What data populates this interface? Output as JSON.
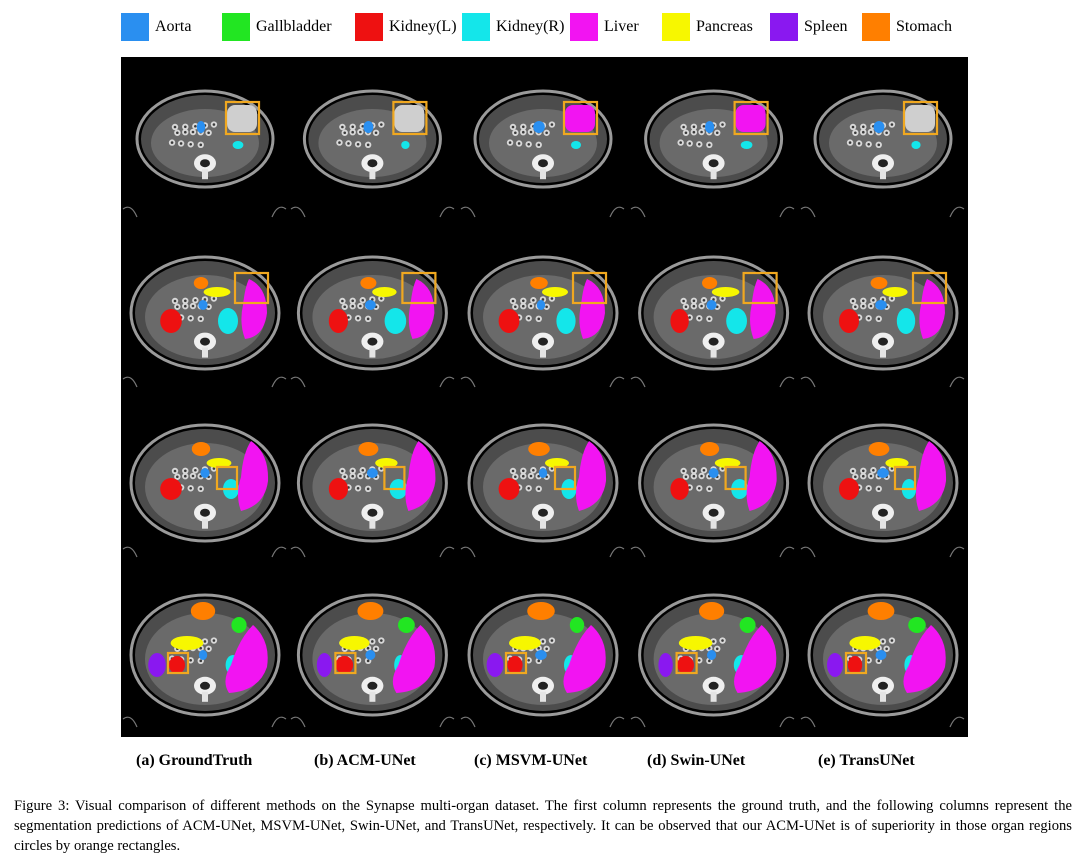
{
  "legend": [
    {
      "label": "Aorta",
      "color": "#2a8ff0"
    },
    {
      "label": "Gallbladder",
      "color": "#22e622"
    },
    {
      "label": "Kidney(L)",
      "color": "#ee1111"
    },
    {
      "label": "Kidney(R)",
      "color": "#14e6ea"
    },
    {
      "label": "Liver",
      "color": "#f214f2"
    },
    {
      "label": "Pancreas",
      "color": "#f7f700"
    },
    {
      "label": "Spleen",
      "color": "#8a18f0"
    },
    {
      "label": "Stomach",
      "color": "#ff7f00"
    }
  ],
  "columns": [
    {
      "label": "(a) GroundTruth"
    },
    {
      "label": "(b) ACM-UNet"
    },
    {
      "label": "(c) MSVM-UNet"
    },
    {
      "label": "(d) Swin-UNet"
    },
    {
      "label": "(e) TransUNet"
    }
  ],
  "highlight_color": "#f0a820",
  "caption": "Figure 3: Visual comparison of different methods on the Synapse multi-organ dataset. The first column represents the ground truth, and the following columns represent the segmentation predictions of ACM-UNet, MSVM-UNet, Swin-UNet, and TransUNet, respectively. It can be observed that our ACM-UNet is of superiority in those organ regions circles by orange rectangles."
}
